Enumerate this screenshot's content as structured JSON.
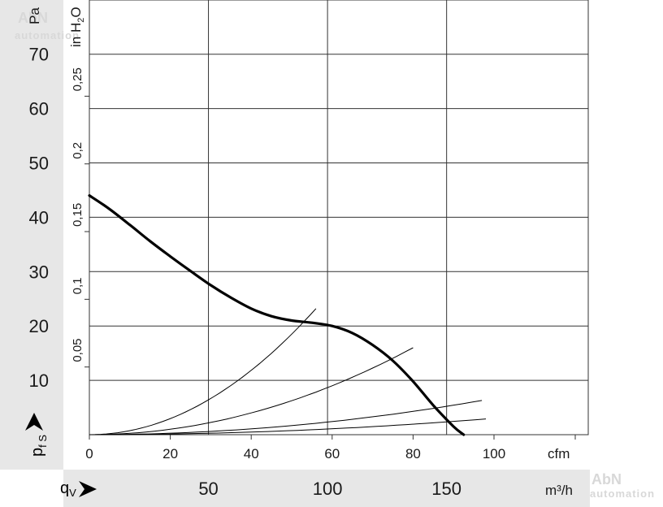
{
  "chart_data": {
    "type": "line",
    "watermark": {
      "brand": "AbN",
      "sub": "automation"
    },
    "axes": {
      "y_pa": {
        "label": "Pa",
        "ticks": [
          10,
          20,
          30,
          40,
          50,
          60,
          70
        ],
        "range": [
          0,
          80
        ]
      },
      "y_inh2o": {
        "label_main": "in H",
        "label_sub": "2",
        "label_tail": "O",
        "ticks": [
          "0,05",
          "0,1",
          "0,15",
          "0,2",
          "0,25"
        ],
        "tick_values": [
          0.05,
          0.1,
          0.15,
          0.2,
          0.25
        ]
      },
      "x_cfm": {
        "label": "cfm",
        "ticks": [
          0,
          20,
          40,
          60,
          80,
          100
        ],
        "range": [
          0,
          120
        ]
      },
      "x_m3h": {
        "label": "m³/h",
        "ticks": [
          50,
          100,
          150
        ]
      }
    },
    "symbols": {
      "pressure_main": "p",
      "pressure_sub": "f S",
      "flow_main": "q",
      "flow_sub": "V"
    },
    "grid": true,
    "series": [
      {
        "kind": "fan-curve",
        "x": [
          0,
          5,
          10,
          15,
          20,
          25,
          30,
          35,
          40,
          45,
          50,
          55,
          60,
          65,
          70,
          75,
          80,
          85,
          90,
          92.5
        ],
        "y": [
          44,
          41.5,
          38.6,
          35.6,
          32.8,
          30.1,
          27.5,
          25.2,
          23.2,
          21.8,
          21,
          20.6,
          20,
          18.7,
          16.5,
          13.6,
          9.8,
          5.4,
          1.5,
          0
        ]
      },
      {
        "kind": "system-curve",
        "x_end": 56,
        "y_end": 23.2
      },
      {
        "kind": "system-curve",
        "x_end": 80,
        "y_end": 16
      },
      {
        "kind": "system-curve",
        "x_end": 97,
        "y_end": 6.3
      },
      {
        "kind": "system-curve",
        "x_end": 98,
        "y_end": 2.9
      }
    ]
  }
}
